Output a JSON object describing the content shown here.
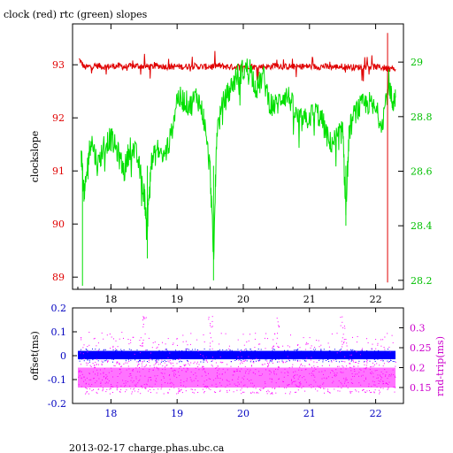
{
  "title": "clock (red) rtc (green) slopes",
  "footer": "2013-02-17 charge.phas.ubc.ca",
  "colors": {
    "clock": "#e00000",
    "rtc": "#00e000",
    "offset": "#0000ff",
    "rndtrip": "#ff00ff",
    "left_axis_top": "#e00000",
    "right_axis_top": "#00c000",
    "left_axis_bottom": "#0000c0",
    "right_axis_bottom": "#cc00cc"
  },
  "chart_data": [
    {
      "type": "line",
      "xlabel": "",
      "xlim": [
        17.42,
        22.42
      ],
      "xticks": [
        "18",
        "19",
        "20",
        "21",
        "22"
      ],
      "ylabel_left": "clockslope",
      "ylim_left": [
        88.77,
        93.77
      ],
      "yticks_left": [
        "89",
        "90",
        "91",
        "92",
        "93"
      ],
      "ylim_right": [
        28.167,
        29.14
      ],
      "yticks_right": [
        "28.2",
        "28.4",
        "28.6",
        "28.8",
        "29"
      ],
      "series": [
        {
          "name": "clock (red)",
          "axis": "left",
          "x": [
            17.52,
            17.6,
            17.7,
            17.8,
            17.9,
            18.0,
            18.1,
            18.2,
            18.3,
            18.4,
            18.5,
            18.6,
            18.7,
            18.8,
            18.9,
            19.0,
            19.1,
            19.2,
            19.3,
            19.4,
            19.5,
            19.6,
            19.7,
            19.8,
            19.9,
            20.0,
            20.1,
            20.2,
            20.3,
            20.4,
            20.5,
            20.6,
            20.7,
            20.8,
            20.9,
            21.0,
            21.1,
            21.2,
            21.3,
            21.4,
            21.5,
            21.6,
            21.7,
            21.8,
            21.9,
            22.0,
            22.1,
            22.18,
            22.2,
            22.3
          ],
          "values": [
            93.1,
            92.95,
            92.97,
            92.98,
            92.96,
            92.97,
            92.98,
            92.96,
            92.97,
            92.98,
            92.97,
            92.96,
            92.98,
            92.97,
            92.96,
            92.97,
            92.96,
            92.98,
            92.97,
            92.96,
            92.97,
            92.98,
            92.97,
            92.96,
            92.96,
            92.97,
            92.98,
            92.95,
            92.97,
            92.96,
            93.0,
            92.96,
            92.97,
            92.96,
            92.97,
            92.97,
            92.96,
            92.97,
            92.96,
            92.96,
            92.97,
            92.96,
            92.95,
            92.96,
            92.97,
            92.96,
            92.95,
            92.93,
            92.93,
            92.92
          ]
        },
        {
          "name": "rtc (green)",
          "axis": "right",
          "x": [
            17.55,
            17.6,
            17.65,
            17.7,
            17.8,
            17.9,
            18.0,
            18.1,
            18.2,
            18.3,
            18.4,
            18.5,
            18.55,
            18.6,
            18.7,
            18.8,
            18.9,
            19.0,
            19.1,
            19.2,
            19.3,
            19.4,
            19.5,
            19.55,
            19.6,
            19.7,
            19.8,
            19.9,
            20.0,
            20.1,
            20.2,
            20.3,
            20.4,
            20.5,
            20.6,
            20.7,
            20.8,
            20.9,
            21.0,
            21.1,
            21.2,
            21.3,
            21.4,
            21.5,
            21.55,
            21.6,
            21.7,
            21.8,
            21.9,
            22.0,
            22.1,
            22.2,
            22.25,
            22.3
          ],
          "values": [
            28.67,
            28.5,
            28.63,
            28.72,
            28.62,
            28.7,
            28.72,
            28.67,
            28.6,
            28.7,
            28.65,
            28.52,
            28.4,
            28.62,
            28.68,
            28.65,
            28.72,
            28.87,
            28.86,
            28.84,
            28.88,
            28.8,
            28.6,
            28.28,
            28.75,
            28.85,
            28.9,
            28.95,
            28.97,
            28.98,
            28.9,
            28.95,
            28.85,
            28.84,
            28.88,
            28.87,
            28.8,
            28.78,
            28.8,
            28.82,
            28.78,
            28.7,
            28.72,
            28.75,
            28.45,
            28.75,
            28.82,
            28.84,
            28.85,
            28.82,
            28.78,
            28.93,
            28.85,
            28.87
          ]
        }
      ]
    },
    {
      "type": "scatter",
      "xlim": [
        17.42,
        22.42
      ],
      "xticks": [
        "18",
        "19",
        "20",
        "21",
        "22"
      ],
      "ylabel_left": "offset(ms)",
      "ylim_left": [
        -0.2,
        0.2
      ],
      "yticks_left": [
        "-0.2",
        "-0.1",
        "0",
        "0.1",
        "0.2"
      ],
      "ylabel_right": "rnd-trip(ms)",
      "ylim_right": [
        0.11,
        0.35
      ],
      "yticks_right": [
        "0.15",
        "0.2",
        "0.25",
        "0.3"
      ],
      "series": [
        {
          "name": "offset",
          "axis": "left",
          "x_range": [
            17.5,
            22.3
          ],
          "band": [
            -0.015,
            0.02
          ],
          "outliers_max": 0.08
        },
        {
          "name": "rnd-trip",
          "axis": "right",
          "x_range": [
            17.5,
            22.3
          ],
          "band": [
            0.15,
            0.2
          ],
          "outliers_max": 0.3
        }
      ]
    }
  ]
}
